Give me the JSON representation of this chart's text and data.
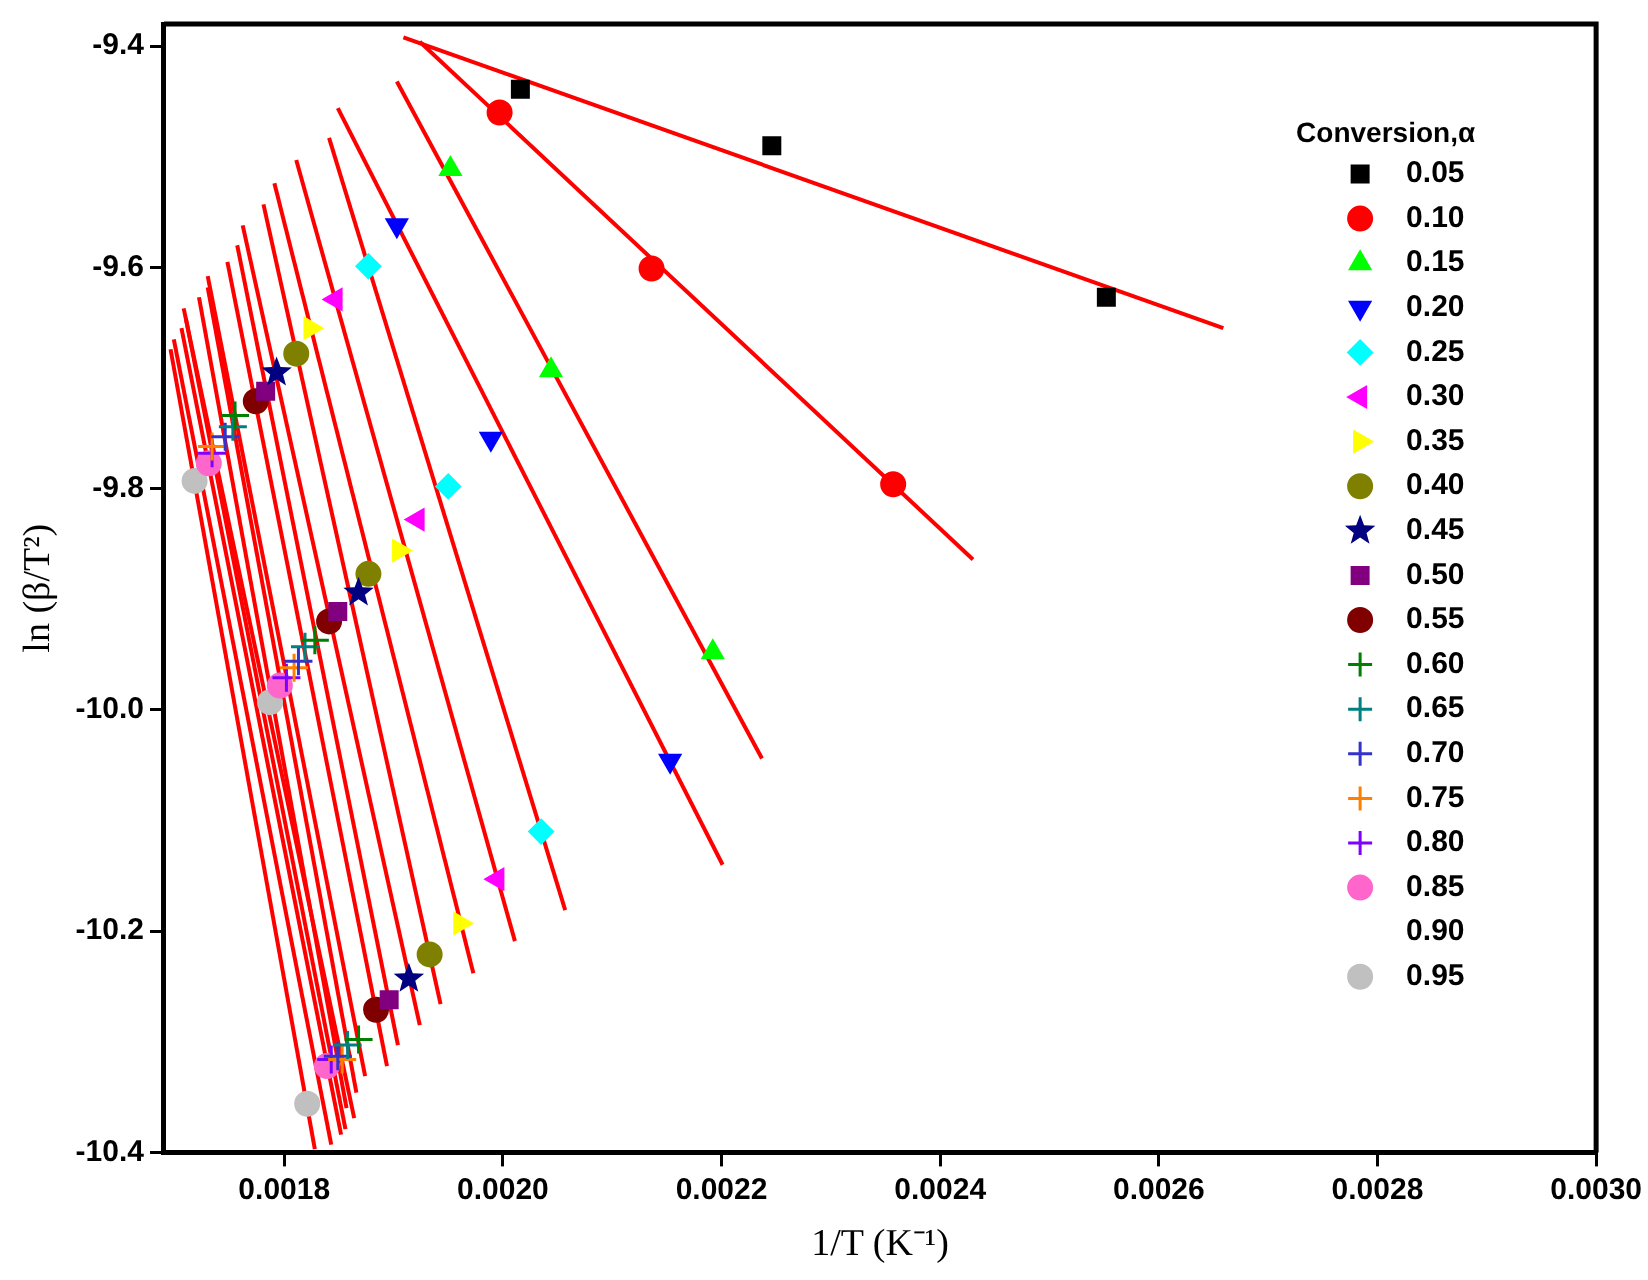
{
  "chart_data": {
    "type": "scatter",
    "xlabel": "1/T (K⁻¹)",
    "ylabel": "ln (β/T²)",
    "legend_title": "Conversion,α",
    "legend": "top right",
    "xlim": [
      0.00169,
      0.003
    ],
    "xticks": [
      0.0018,
      {
        "value": 0.002,
        "label": "0.0020"
      },
      0.0022,
      0.0024,
      0.0026,
      0.0028,
      {
        "value": 0.003,
        "label": "0.0030"
      }
    ],
    "ylim": [
      -10.4,
      -9.38
    ],
    "yticks": [
      -9.4,
      -9.6,
      -9.8,
      {
        "value": -10,
        "label": "-10.0"
      },
      -10.2,
      -10.4
    ],
    "series": [
      {
        "name": "0.05",
        "color": "#000000",
        "marker": "square",
        "x": [
          0.002016,
          0.002246,
          0.002552
        ],
        "values": [
          -9.439,
          -9.49,
          -9.627
        ]
      },
      {
        "name": "0.10",
        "color": "#ff0000",
        "marker": "circle",
        "x": [
          0.001997,
          0.002136,
          0.002357
        ],
        "values": [
          -9.46,
          -9.601,
          -9.796
        ]
      },
      {
        "name": "0.15",
        "color": "#00ff00",
        "marker": "triangle",
        "x": [
          0.001952,
          0.002044,
          0.002192
        ],
        "values": [
          -9.511,
          -9.693,
          -9.948
        ]
      },
      {
        "name": "0.20",
        "color": "#0000ff",
        "marker": "triangle-down",
        "x": [
          0.001903,
          0.001989,
          0.002153
        ],
        "values": [
          -9.562,
          -9.755,
          -10.046
        ]
      },
      {
        "name": "0.25",
        "color": "#00ffff",
        "marker": "diamond",
        "x": [
          0.001877,
          0.00195,
          0.002035
        ],
        "values": [
          -9.599,
          -9.798,
          -10.11
        ]
      },
      {
        "name": "0.30",
        "color": "#ff00ff",
        "marker": "triangle-left",
        "x": [
          0.001847,
          0.001922,
          0.001995
        ],
        "values": [
          -9.629,
          -9.828,
          -10.153
        ]
      },
      {
        "name": "0.35",
        "color": "#ffff00",
        "marker": "triangle-right",
        "x": [
          0.001824,
          0.001905,
          0.001961
        ],
        "values": [
          -9.655,
          -9.856,
          -10.193
        ]
      },
      {
        "name": "0.40",
        "color": "#808000",
        "marker": "circle",
        "x": [
          0.001811,
          0.001877,
          0.001933
        ],
        "values": [
          -9.678,
          -9.877,
          -10.221
        ]
      },
      {
        "name": "0.45",
        "color": "#000080",
        "marker": "star",
        "x": [
          0.001793,
          0.001868,
          0.001914
        ],
        "values": [
          -9.695,
          -9.894,
          -10.243
        ]
      },
      {
        "name": "0.50",
        "color": "#800080",
        "marker": "square",
        "x": [
          0.001783,
          0.001849,
          0.001896
        ],
        "values": [
          -9.712,
          -9.911,
          -10.262
        ]
      },
      {
        "name": "0.55",
        "color": "#800000",
        "marker": "circle",
        "x": [
          0.001774,
          0.001841,
          0.001884
        ],
        "values": [
          -9.721,
          -9.92,
          -10.271
        ]
      },
      {
        "name": "0.60",
        "color": "#008000",
        "marker": "cross",
        "x": [
          0.001755,
          0.001828,
          0.001868
        ],
        "values": [
          -9.734,
          -9.937,
          -10.298
        ]
      },
      {
        "name": "0.65",
        "color": "#008080",
        "marker": "cross",
        "x": [
          0.001753,
          0.001819,
          0.001858
        ],
        "values": [
          -9.744,
          -9.943,
          -10.303
        ]
      },
      {
        "name": "0.70",
        "color": "#3333cc",
        "marker": "cross",
        "x": [
          0.001746,
          0.001813,
          0.001849
        ],
        "values": [
          -9.753,
          -9.956,
          -10.313
        ]
      },
      {
        "name": "0.75",
        "color": "#ff8000",
        "marker": "cross",
        "x": [
          0.001734,
          0.001809,
          0.001853
        ],
        "values": [
          -9.762,
          -9.962,
          -10.316
        ]
      },
      {
        "name": "0.80",
        "color": "#8000ff",
        "marker": "cross",
        "x": [
          0.001734,
          0.001802,
          0.001843
        ],
        "values": [
          -9.768,
          -9.971,
          -10.316
        ]
      },
      {
        "name": "0.85",
        "color": "#ff66cc",
        "marker": "circle",
        "x": [
          0.001731,
          0.001796,
          0.001839
        ],
        "values": [
          -9.777,
          -9.978,
          -10.322
        ]
      },
      {
        "name": "0.90"
      },
      {
        "name": "0.95",
        "color": "#c0c0c0",
        "marker": "circle",
        "x": [
          0.001718,
          0.001787,
          0.001821
        ],
        "values": [
          -9.793,
          -9.993,
          -10.356
        ]
      },
      {
        "type": "line",
        "color": "#ff0000",
        "marker": "none",
        "x": [
          0.001909,
          0.002659
        ],
        "values": [
          -9.392,
          -9.655
        ]
      },
      {
        "type": "line",
        "color": "#ff0000",
        "marker": "none",
        "x": [
          0.001924,
          0.00243
        ],
        "values": [
          -9.396,
          -9.864
        ]
      },
      {
        "type": "line",
        "color": "#ff0000",
        "marker": "none",
        "x": [
          0.001903,
          0.002237
        ],
        "values": [
          -9.432,
          -10.044
        ]
      },
      {
        "type": "line",
        "color": "#ff0000",
        "marker": "none",
        "x": [
          0.001849,
          0.002201
        ],
        "values": [
          -9.456,
          -10.14
        ]
      },
      {
        "type": "line",
        "color": "#ff0000",
        "marker": "none",
        "x": [
          0.001841,
          0.002057
        ],
        "values": [
          -9.483,
          -10.181
        ]
      },
      {
        "type": "line",
        "color": "#ff0000",
        "marker": "none",
        "x": [
          0.001811,
          0.002011
        ],
        "values": [
          -9.503,
          -10.209
        ]
      },
      {
        "type": "line",
        "color": "#ff0000",
        "marker": "none",
        "x": [
          0.001791,
          0.001973
        ],
        "values": [
          -9.524,
          -10.238
        ]
      },
      {
        "type": "line",
        "color": "#ff0000",
        "marker": "none",
        "x": [
          0.001781,
          0.001943
        ],
        "values": [
          -9.543,
          -10.266
        ]
      },
      {
        "type": "line",
        "color": "#ff0000",
        "marker": "none",
        "x": [
          0.001762,
          0.001924
        ],
        "values": [
          -9.562,
          -10.285
        ]
      },
      {
        "type": "line",
        "color": "#ff0000",
        "marker": "none",
        "x": [
          0.001757,
          0.001904
        ],
        "values": [
          -9.58,
          -10.303
        ]
      },
      {
        "type": "line",
        "color": "#ff0000",
        "marker": "none",
        "x": [
          0.001748,
          0.001894
        ],
        "values": [
          -9.595,
          -10.322
        ]
      },
      {
        "type": "line",
        "color": "#ff0000",
        "marker": "none",
        "x": [
          0.00173,
          0.001874
        ],
        "values": [
          -9.608,
          -10.331
        ]
      },
      {
        "type": "line",
        "color": "#ff0000",
        "marker": "none",
        "x": [
          0.00173,
          0.001866
        ],
        "values": [
          -9.618,
          -10.346
        ]
      },
      {
        "type": "line",
        "color": "#ff0000",
        "marker": "none",
        "x": [
          0.001722,
          0.001857
        ],
        "values": [
          -9.627,
          -10.36
        ]
      },
      {
        "type": "line",
        "color": "#ff0000",
        "marker": "none",
        "x": [
          0.001708,
          0.001864
        ],
        "values": [
          -9.637,
          -10.369
        ]
      },
      {
        "type": "line",
        "color": "#ff0000",
        "marker": "none",
        "x": [
          0.00171,
          0.001856
        ],
        "values": [
          -9.646,
          -10.379
        ]
      },
      {
        "type": "line",
        "color": "#ff0000",
        "marker": "none",
        "x": [
          0.001706,
          0.001852
        ],
        "values": [
          -9.655,
          -10.384
        ]
      },
      {
        "type": "line",
        "color": "#ff0000",
        "marker": "none",
        "x": [
          0.001699,
          0.001843
        ],
        "values": [
          -9.665,
          -10.393
        ]
      },
      {
        "type": "line",
        "color": "#ff0000",
        "marker": "none",
        "x": [
          0.001696,
          0.001828
        ],
        "values": [
          -9.674,
          -10.397
        ]
      }
    ]
  }
}
